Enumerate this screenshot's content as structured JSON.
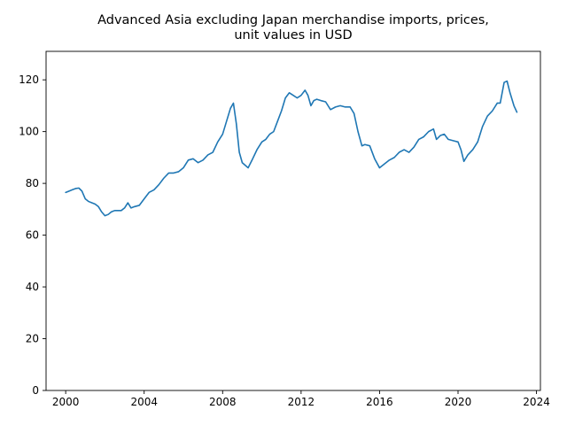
{
  "chart_data": {
    "type": "line",
    "title_lines": [
      "Advanced Asia excluding Japan merchandise imports, prices,",
      "unit values in USD"
    ],
    "xlabel": "",
    "ylabel": "",
    "xlim": [
      1999.0,
      2024.2
    ],
    "ylim": [
      0,
      131
    ],
    "x_ticks": [
      2000,
      2004,
      2008,
      2012,
      2016,
      2020,
      2024
    ],
    "y_ticks": [
      0,
      20,
      40,
      60,
      80,
      100,
      120
    ],
    "grid": false,
    "line_color": "#1f77b4",
    "series": [
      {
        "x": [
          2000.0,
          2000.17,
          2000.33,
          2000.5,
          2000.67,
          2000.83,
          2001.0,
          2001.17,
          2001.33,
          2001.5,
          2001.67,
          2001.83,
          2002.0,
          2002.17,
          2002.33,
          2002.5,
          2002.67,
          2002.83,
          2003.0,
          2003.17,
          2003.33,
          2003.5,
          2003.75,
          2004.0,
          2004.25,
          2004.5,
          2004.75,
          2005.0,
          2005.25,
          2005.5,
          2005.75,
          2006.0,
          2006.25,
          2006.5,
          2006.75,
          2007.0,
          2007.25,
          2007.5,
          2007.75,
          2008.0,
          2008.2,
          2008.4,
          2008.55,
          2008.7,
          2008.85,
          2009.0,
          2009.15,
          2009.3,
          2009.5,
          2009.75,
          2010.0,
          2010.2,
          2010.4,
          2010.6,
          2010.8,
          2011.0,
          2011.2,
          2011.4,
          2011.6,
          2011.8,
          2012.0,
          2012.2,
          2012.35,
          2012.5,
          2012.65,
          2012.8,
          2013.0,
          2013.25,
          2013.5,
          2013.75,
          2014.0,
          2014.25,
          2014.5,
          2014.7,
          2014.9,
          2015.1,
          2015.25,
          2015.5,
          2015.75,
          2016.0,
          2016.25,
          2016.5,
          2016.75,
          2017.0,
          2017.25,
          2017.5,
          2017.75,
          2018.0,
          2018.25,
          2018.5,
          2018.75,
          2018.9,
          2019.1,
          2019.3,
          2019.5,
          2019.75,
          2020.0,
          2020.15,
          2020.3,
          2020.5,
          2020.75,
          2021.0,
          2021.25,
          2021.5,
          2021.75,
          2022.0,
          2022.15,
          2022.35,
          2022.5,
          2022.65,
          2022.85,
          2023.0
        ],
        "y": [
          76.5,
          77.0,
          77.5,
          78.0,
          78.2,
          77.0,
          74.0,
          73.0,
          72.5,
          72.0,
          71.0,
          69.0,
          67.5,
          68.0,
          69.0,
          69.5,
          69.5,
          69.5,
          70.5,
          72.5,
          70.5,
          71.0,
          71.5,
          74.0,
          76.5,
          77.5,
          79.5,
          82.0,
          84.0,
          84.0,
          84.5,
          86.0,
          89.0,
          89.5,
          88.0,
          89.0,
          91.0,
          92.0,
          96.0,
          99.0,
          104.0,
          109.0,
          111.0,
          103.0,
          92.0,
          88.0,
          87.0,
          86.0,
          89.0,
          93.0,
          96.0,
          97.0,
          99.0,
          100.0,
          104.0,
          108.0,
          113.0,
          115.0,
          114.0,
          113.0,
          114.0,
          116.0,
          114.0,
          110.0,
          112.0,
          112.5,
          112.0,
          111.5,
          108.5,
          109.5,
          110.0,
          109.5,
          109.5,
          107.0,
          100.0,
          94.5,
          95.0,
          94.5,
          89.5,
          86.0,
          87.5,
          89.0,
          90.0,
          92.0,
          93.0,
          92.0,
          94.0,
          97.0,
          98.0,
          100.0,
          101.0,
          97.0,
          98.5,
          99.0,
          97.0,
          96.5,
          96.0,
          93.0,
          88.5,
          91.0,
          93.0,
          96.0,
          102.0,
          106.0,
          108.0,
          111.0,
          111.0,
          119.0,
          119.5,
          115.0,
          110.0,
          107.5
        ]
      }
    ]
  }
}
